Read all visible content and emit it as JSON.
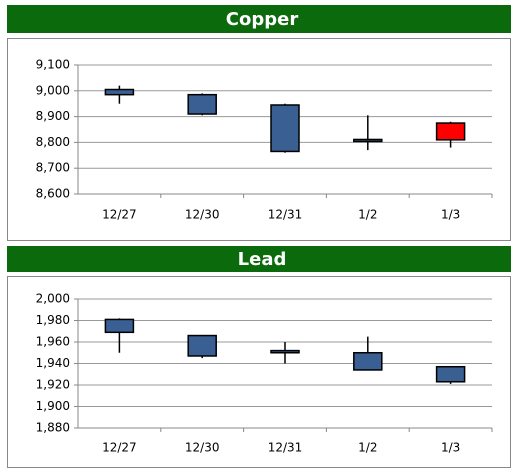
{
  "chart_data": [
    {
      "type": "candlestick",
      "title": "Copper",
      "categories": [
        "12/27",
        "12/30",
        "12/31",
        "1/2",
        "1/3"
      ],
      "open": [
        9005,
        8985,
        8945,
        8810,
        8810
      ],
      "high": [
        9020,
        8990,
        8950,
        8905,
        8880
      ],
      "low": [
        8950,
        8905,
        8760,
        8770,
        8780
      ],
      "close": [
        8985,
        8910,
        8765,
        8805,
        8875
      ],
      "up_color": "#ff0000",
      "down_color": "#3a5f93",
      "ylim": [
        8600,
        9100
      ],
      "yticks": [
        {
          "value": 8600,
          "label": "8,600"
        },
        {
          "value": 8700,
          "label": "8,700"
        },
        {
          "value": 8800,
          "label": "8,800"
        },
        {
          "value": 8900,
          "label": "8,900"
        },
        {
          "value": 9000,
          "label": "9,000"
        },
        {
          "value": 9100,
          "label": "9,100"
        }
      ],
      "grid": true
    },
    {
      "type": "candlestick",
      "title": "Lead",
      "categories": [
        "12/27",
        "12/30",
        "12/31",
        "1/2",
        "1/3"
      ],
      "open": [
        1981,
        1966,
        1952,
        1950,
        1937
      ],
      "high": [
        1982,
        1966,
        1960,
        1965,
        1937
      ],
      "low": [
        1950,
        1945,
        1940,
        1934,
        1921
      ],
      "close": [
        1969,
        1947,
        1950,
        1934,
        1923
      ],
      "up_color": "#ff0000",
      "down_color": "#3a5f93",
      "ylim": [
        1880,
        2000
      ],
      "yticks": [
        {
          "value": 1880,
          "label": "1,880"
        },
        {
          "value": 1900,
          "label": "1,900"
        },
        {
          "value": 1920,
          "label": "1,920"
        },
        {
          "value": 1940,
          "label": "1,940"
        },
        {
          "value": 1960,
          "label": "1,960"
        },
        {
          "value": 1980,
          "label": "1,980"
        },
        {
          "value": 2000,
          "label": "2,000"
        }
      ],
      "grid": true
    }
  ]
}
